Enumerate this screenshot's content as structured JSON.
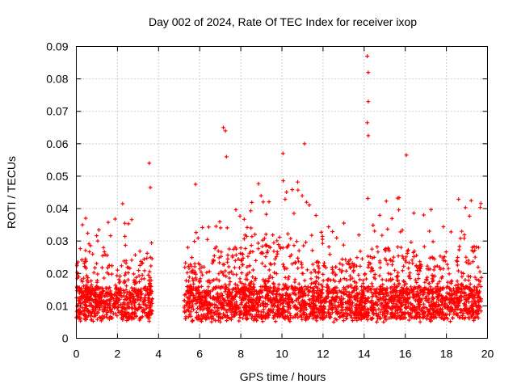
{
  "chart_data": {
    "type": "scatter",
    "title": "Day 002 of 2024, Rate Of TEC Index for receiver ixop",
    "xlabel": "GPS time / hours",
    "ylabel": "ROTI / TECUs",
    "xlim": [
      0,
      20
    ],
    "ylim": [
      0,
      0.09
    ],
    "x_ticks": [
      0,
      2,
      4,
      6,
      8,
      10,
      12,
      14,
      16,
      18,
      20
    ],
    "x_tick_labels": [
      "0",
      "2",
      "4",
      "6",
      "8",
      "10",
      "12",
      "14",
      "16",
      "18",
      "20"
    ],
    "y_ticks": [
      0,
      0.01,
      0.02,
      0.03,
      0.04,
      0.05,
      0.06,
      0.07,
      0.08,
      0.09
    ],
    "y_tick_labels": [
      "0",
      "0.01",
      "0.02",
      "0.03",
      "0.04",
      "0.05",
      "0.06",
      "0.07",
      "0.08",
      "0.09"
    ],
    "grid": true,
    "marker": "+",
    "series": [
      {
        "name": "ROTI",
        "color": "#ff0000",
        "data_gap_hours": [
          3.7,
          5.25
        ],
        "coverage_hours": [
          [
            0.0,
            3.7
          ],
          [
            5.25,
            19.7
          ]
        ],
        "outliers": [
          {
            "x": 3.55,
            "y": 0.054
          },
          {
            "x": 3.6,
            "y": 0.0465
          },
          {
            "x": 7.15,
            "y": 0.065
          },
          {
            "x": 7.25,
            "y": 0.064
          },
          {
            "x": 7.3,
            "y": 0.056
          },
          {
            "x": 10.05,
            "y": 0.057
          },
          {
            "x": 11.1,
            "y": 0.06
          },
          {
            "x": 14.15,
            "y": 0.087
          },
          {
            "x": 14.2,
            "y": 0.082
          },
          {
            "x": 14.2,
            "y": 0.073
          },
          {
            "x": 14.15,
            "y": 0.0665
          },
          {
            "x": 14.2,
            "y": 0.0625
          },
          {
            "x": 16.05,
            "y": 0.0565
          },
          {
            "x": 0.3,
            "y": 0.035
          },
          {
            "x": 2.25,
            "y": 0.0415
          },
          {
            "x": 5.8,
            "y": 0.0475
          }
        ]
      }
    ]
  }
}
